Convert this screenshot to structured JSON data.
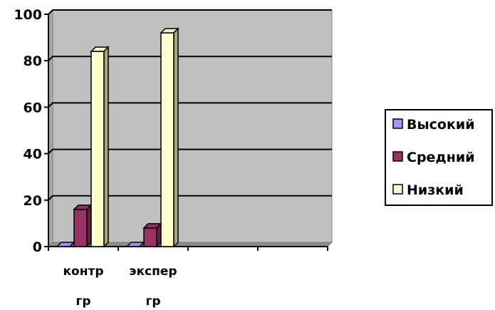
{
  "chart_data": {
    "type": "bar",
    "style": "3d-clustered-column",
    "categories": [
      [
        "контр",
        "гр"
      ],
      [
        "экспер",
        "гр"
      ],
      [
        ""
      ],
      [
        ""
      ]
    ],
    "series": [
      {
        "name": "Высокий",
        "values": [
          0,
          0,
          null,
          null
        ],
        "color": "#9999ff"
      },
      {
        "name": "Средний",
        "values": [
          16,
          8,
          null,
          null
        ],
        "color": "#993366"
      },
      {
        "name": "Низкий",
        "values": [
          84,
          92,
          null,
          null
        ],
        "color": "#ffffcc"
      }
    ],
    "yticks": [
      "0",
      "20",
      "40",
      "60",
      "80",
      "100"
    ],
    "ylim": [
      0,
      100
    ],
    "grid": true,
    "plot_background": "#c0c0c0",
    "legend_position": "right"
  }
}
